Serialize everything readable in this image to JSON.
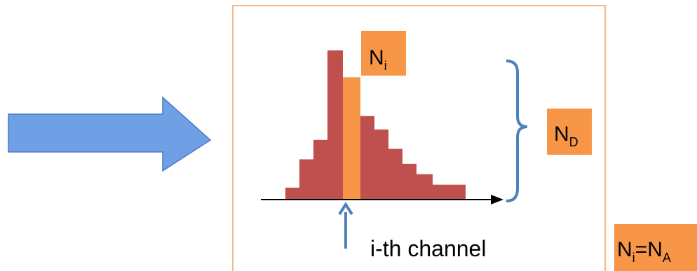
{
  "colors": {
    "arrow_fill": "#6fa0e6",
    "arrow_stroke": "#4a78c0",
    "frame_stroke": "#f0a060",
    "histogram_bar": "#c0504d",
    "highlight_bar": "#f79646",
    "brace": "#4f81bd",
    "pointer_arrow": "#4f81bd",
    "axis": "#000000"
  },
  "histogram": {
    "levels": [
      0.08,
      0.27,
      0.4,
      1.0,
      0.82,
      0.56,
      0.47,
      0.34,
      0.24,
      0.17,
      0.1,
      0.1
    ],
    "highlight_index": 4
  },
  "labels": {
    "ni": {
      "main": "N",
      "sub": "i"
    },
    "nd": {
      "main": "N",
      "sub": "D"
    },
    "channel": "i-th channel",
    "equation": {
      "left_main": "N",
      "left_sub": "i",
      "equals": "=",
      "right_main": "N",
      "right_sub": "A"
    }
  }
}
